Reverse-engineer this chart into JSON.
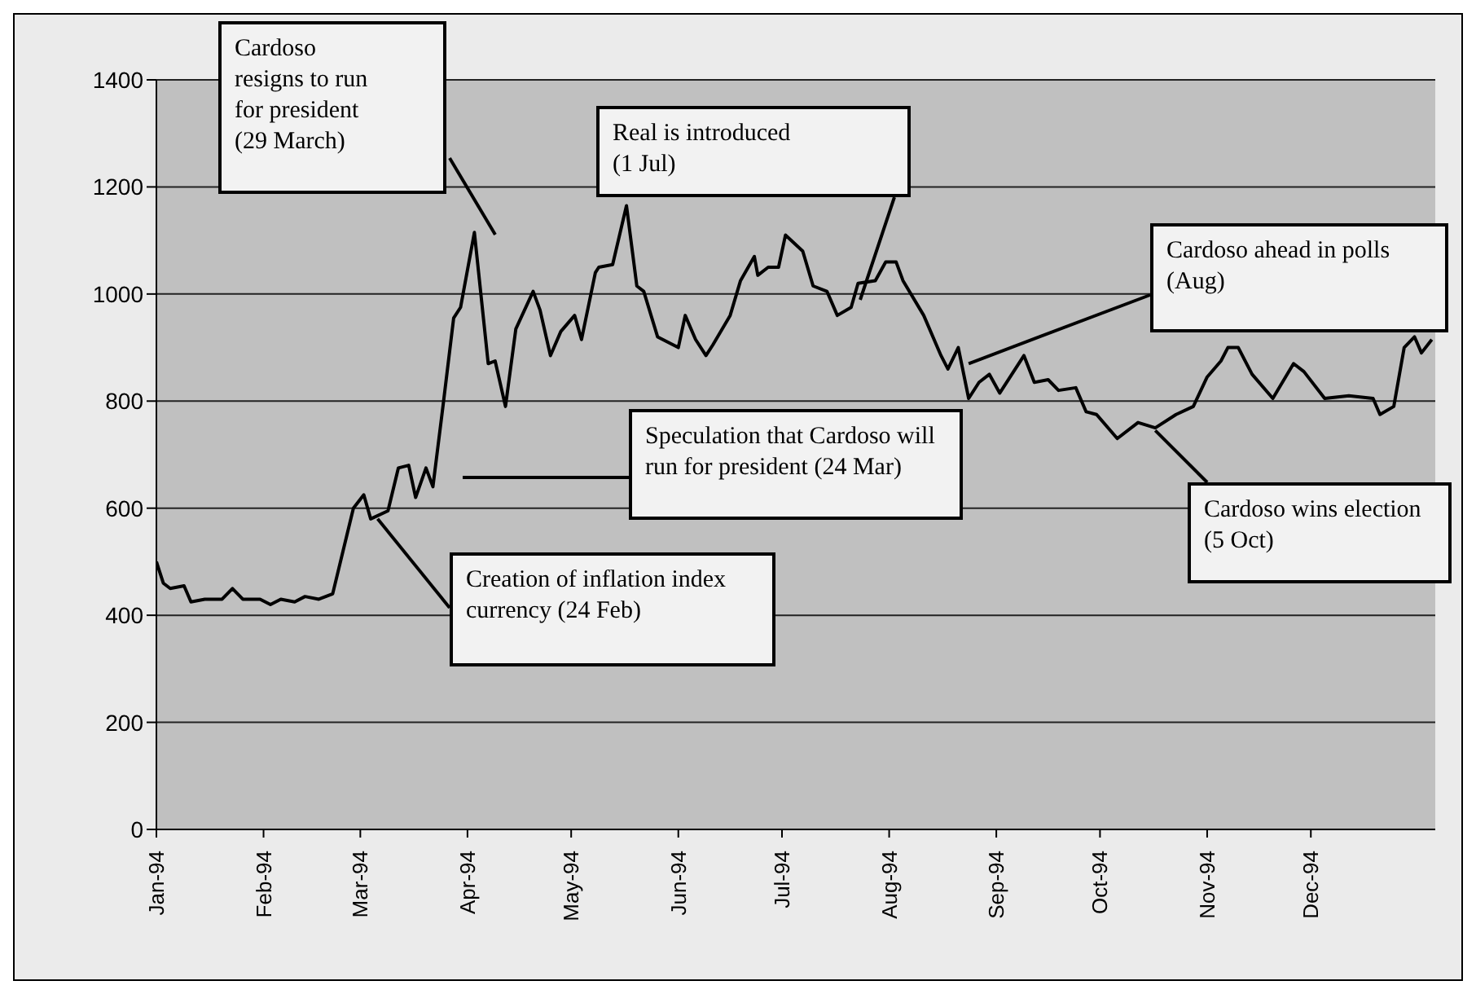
{
  "chart_data": {
    "type": "line",
    "grid": "y",
    "marker": "none",
    "line_style": "solid",
    "xlim": [
      "1994-01-01",
      "1995-01-06"
    ],
    "xticks": [
      {
        "value": "1994-01-01",
        "label": "Jan-94"
      },
      {
        "value": "1994-02-01",
        "label": "Feb-94"
      },
      {
        "value": "1994-03-01",
        "label": "Mar-94"
      },
      {
        "value": "1994-04-01",
        "label": "Apr-94"
      },
      {
        "value": "1994-05-01",
        "label": "May-94"
      },
      {
        "value": "1994-06-01",
        "label": "Jun-94"
      },
      {
        "value": "1994-07-01",
        "label": "Jul-94"
      },
      {
        "value": "1994-08-01",
        "label": "Aug-94"
      },
      {
        "value": "1994-09-01",
        "label": "Sep-94"
      },
      {
        "value": "1994-10-01",
        "label": "Oct-94"
      },
      {
        "value": "1994-11-01",
        "label": "Nov-94"
      },
      {
        "value": "1994-12-01",
        "label": "Dec-94"
      }
    ],
    "ylim": [
      0,
      1400
    ],
    "yticks": [
      0,
      200,
      400,
      600,
      800,
      1000,
      1200,
      1400
    ],
    "x": [
      "1994-01-01",
      "1994-01-03",
      "1994-01-05",
      "1994-01-09",
      "1994-01-11",
      "1994-01-15",
      "1994-01-20",
      "1994-01-23",
      "1994-01-26",
      "1994-01-31",
      "1994-02-03",
      "1994-02-06",
      "1994-02-10",
      "1994-02-13",
      "1994-02-17",
      "1994-02-21",
      "1994-02-24",
      "1994-02-27",
      "1994-03-02",
      "1994-03-04",
      "1994-03-09",
      "1994-03-12",
      "1994-03-15",
      "1994-03-17",
      "1994-03-20",
      "1994-03-22",
      "1994-03-25",
      "1994-03-28",
      "1994-03-30",
      "1994-04-03",
      "1994-04-07",
      "1994-04-09",
      "1994-04-12",
      "1994-04-15",
      "1994-04-20",
      "1994-04-22",
      "1994-04-25",
      "1994-04-28",
      "1994-05-02",
      "1994-05-04",
      "1994-05-08",
      "1994-05-09",
      "1994-05-13",
      "1994-05-17",
      "1994-05-20",
      "1994-05-22",
      "1994-05-26",
      "1994-06-01",
      "1994-06-03",
      "1994-06-06",
      "1994-06-09",
      "1994-06-11",
      "1994-06-16",
      "1994-06-19",
      "1994-06-23",
      "1994-06-24",
      "1994-06-27",
      "1994-06-30",
      "1994-07-02",
      "1994-07-07",
      "1994-07-10",
      "1994-07-14",
      "1994-07-17",
      "1994-07-21",
      "1994-07-23",
      "1994-07-28",
      "1994-07-31",
      "1994-08-03",
      "1994-08-05",
      "1994-08-11",
      "1994-08-16",
      "1994-08-18",
      "1994-08-21",
      "1994-08-24",
      "1994-08-27",
      "1994-08-30",
      "1994-09-02",
      "1994-09-09",
      "1994-09-12",
      "1994-09-16",
      "1994-09-19",
      "1994-09-24",
      "1994-09-27",
      "1994-09-30",
      "1994-10-06",
      "1994-10-12",
      "1994-10-17",
      "1994-10-23",
      "1994-10-28",
      "1994-11-01",
      "1994-11-05",
      "1994-11-07",
      "1994-11-10",
      "1994-11-14",
      "1994-11-20",
      "1994-11-26",
      "1994-11-29",
      "1994-12-05",
      "1994-12-12",
      "1994-12-19",
      "1994-12-21",
      "1994-12-25",
      "1994-12-28",
      "1994-12-31",
      "1995-01-02",
      "1995-01-05"
    ],
    "series": [
      {
        "color": "#000000",
        "values": [
          500,
          460,
          450,
          455,
          425,
          430,
          430,
          450,
          430,
          430,
          420,
          430,
          425,
          435,
          430,
          440,
          520,
          600,
          625,
          580,
          595,
          675,
          680,
          620,
          675,
          640,
          795,
          955,
          975,
          1115,
          870,
          875,
          790,
          935,
          1005,
          970,
          885,
          930,
          960,
          915,
          1040,
          1050,
          1055,
          1165,
          1015,
          1005,
          920,
          900,
          960,
          915,
          885,
          905,
          960,
          1025,
          1070,
          1035,
          1050,
          1050,
          1110,
          1080,
          1015,
          1005,
          960,
          975,
          1020,
          1025,
          1060,
          1060,
          1025,
          960,
          885,
          860,
          900,
          805,
          835,
          850,
          815,
          885,
          835,
          840,
          820,
          825,
          780,
          775,
          730,
          760,
          750,
          775,
          790,
          845,
          875,
          900,
          900,
          850,
          805,
          870,
          855,
          805,
          810,
          805,
          775,
          790,
          900,
          920,
          890,
          915
        ]
      }
    ],
    "annotations": [
      "Cardoso resigns to run for president (29 March)",
      "Real is introduced (1 Jul)",
      {
        "text": "Cardoso ahead in polls (Aug)",
        "x": "1994-08-24",
        "y": 870
      },
      "Speculation that Cardoso will run for president (24 Mar)",
      {
        "text": "Creation of inflation index currency (24 Feb)",
        "x": "1994-03-06",
        "y": 580
      },
      {
        "text": "Cardoso wins election (5 Oct)",
        "x": "1994-10-17",
        "y": 745
      }
    ]
  }
}
